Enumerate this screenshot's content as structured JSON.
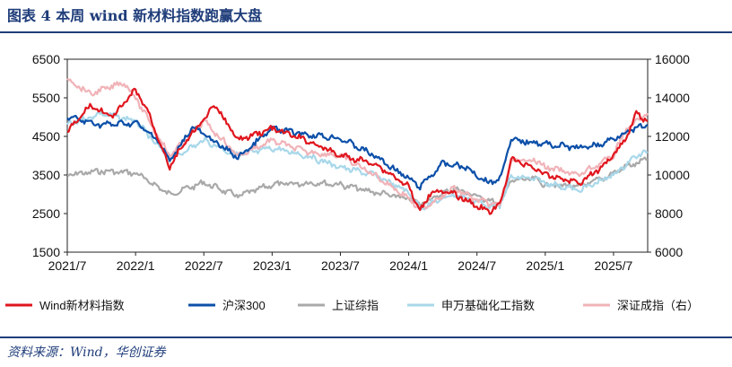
{
  "figure": {
    "title": "图表 4   本周 wind 新材料指数跑赢大盘",
    "source": "资料来源：Wind，华创证券"
  },
  "chart_data": {
    "type": "line",
    "x_start": "2021/7",
    "x_end": "2025/10",
    "xticks": [
      "2021/7",
      "2022/1",
      "2022/7",
      "2023/1",
      "2023/7",
      "2024/1",
      "2024/7",
      "2025/1",
      "2025/7"
    ],
    "y_left": {
      "range": [
        1500,
        6500
      ],
      "ticks": [
        "1500",
        "2500",
        "3500",
        "4500",
        "5500",
        "6500"
      ]
    },
    "y_right": {
      "range": [
        6000,
        16000
      ],
      "ticks": [
        "6000",
        "8000",
        "10000",
        "12000",
        "14000",
        "16000"
      ]
    },
    "series": [
      {
        "name": "Wind新材料指数",
        "axis": "left",
        "color": "#e0161e",
        "points": [
          [
            "2021/7",
            4600
          ],
          [
            "2021/9",
            5300
          ],
          [
            "2021/11",
            5000
          ],
          [
            "2022/1",
            5700
          ],
          [
            "2022/2",
            5200
          ],
          [
            "2022/4",
            3700
          ],
          [
            "2022/5",
            4200
          ],
          [
            "2022/8",
            5300
          ],
          [
            "2022/10",
            4400
          ],
          [
            "2023/1",
            4700
          ],
          [
            "2023/4",
            4400
          ],
          [
            "2023/7",
            4000
          ],
          [
            "2023/10",
            3800
          ],
          [
            "2024/1",
            3200
          ],
          [
            "2024/2",
            2550
          ],
          [
            "2024/3",
            3100
          ],
          [
            "2024/5",
            3000
          ],
          [
            "2024/7",
            2700
          ],
          [
            "2024/8",
            2550
          ],
          [
            "2024/9",
            2700
          ],
          [
            "2024/10",
            3900
          ],
          [
            "2024/12",
            3700
          ],
          [
            "2025/1",
            3500
          ],
          [
            "2025/4",
            3300
          ],
          [
            "2025/6",
            3700
          ],
          [
            "2025/8",
            4400
          ],
          [
            "2025/9",
            5100
          ],
          [
            "2025/10",
            4900
          ]
        ]
      },
      {
        "name": "沪深300",
        "axis": "right",
        "color": "#0b4fa8",
        "points": [
          [
            "2021/7",
            13000
          ],
          [
            "2021/10",
            12600
          ],
          [
            "2022/1",
            12700
          ],
          [
            "2022/3",
            11800
          ],
          [
            "2022/4",
            10700
          ],
          [
            "2022/6",
            12500
          ],
          [
            "2022/10",
            10900
          ],
          [
            "2023/1",
            12400
          ],
          [
            "2023/4",
            12100
          ],
          [
            "2023/7",
            11900
          ],
          [
            "2023/10",
            11000
          ],
          [
            "2024/1",
            9800
          ],
          [
            "2024/2",
            9400
          ],
          [
            "2024/4",
            10600
          ],
          [
            "2024/6",
            10400
          ],
          [
            "2024/8",
            9600
          ],
          [
            "2024/9",
            9800
          ],
          [
            "2024/10",
            11800
          ],
          [
            "2024/12",
            11700
          ],
          [
            "2025/1",
            11600
          ],
          [
            "2025/4",
            11400
          ],
          [
            "2025/6",
            11600
          ],
          [
            "2025/8",
            12200
          ],
          [
            "2025/10",
            12600
          ]
        ]
      },
      {
        "name": "上证综指",
        "axis": "left",
        "color": "#a9a9a9",
        "points": [
          [
            "2021/7",
            3500
          ],
          [
            "2021/10",
            3600
          ],
          [
            "2022/1",
            3550
          ],
          [
            "2022/4",
            3000
          ],
          [
            "2022/7",
            3300
          ],
          [
            "2022/10",
            2950
          ],
          [
            "2023/1",
            3250
          ],
          [
            "2023/5",
            3300
          ],
          [
            "2023/7",
            3250
          ],
          [
            "2023/10",
            3050
          ],
          [
            "2024/1",
            2880
          ],
          [
            "2024/2",
            2750
          ],
          [
            "2024/5",
            3150
          ],
          [
            "2024/7",
            2950
          ],
          [
            "2024/9",
            2750
          ],
          [
            "2024/10",
            3350
          ],
          [
            "2024/12",
            3400
          ],
          [
            "2025/1",
            3250
          ],
          [
            "2025/4",
            3200
          ],
          [
            "2025/6",
            3400
          ],
          [
            "2025/8",
            3700
          ],
          [
            "2025/10",
            3900
          ]
        ]
      },
      {
        "name": "申万基础化工指数",
        "axis": "left",
        "color": "#a8d8ea",
        "points": [
          [
            "2021/7",
            4800
          ],
          [
            "2021/10",
            5100
          ],
          [
            "2022/1",
            4900
          ],
          [
            "2022/4",
            3900
          ],
          [
            "2022/7",
            4400
          ],
          [
            "2022/10",
            4000
          ],
          [
            "2023/1",
            4200
          ],
          [
            "2023/4",
            4000
          ],
          [
            "2023/7",
            3700
          ],
          [
            "2023/10",
            3500
          ],
          [
            "2024/1",
            3050
          ],
          [
            "2024/2",
            2650
          ],
          [
            "2024/5",
            3000
          ],
          [
            "2024/8",
            2700
          ],
          [
            "2024/9",
            2700
          ],
          [
            "2024/10",
            3450
          ],
          [
            "2024/12",
            3400
          ],
          [
            "2025/1",
            3300
          ],
          [
            "2025/4",
            3100
          ],
          [
            "2025/7",
            3500
          ],
          [
            "2025/9",
            4000
          ],
          [
            "2025/10",
            4100
          ]
        ]
      },
      {
        "name": "深证成指（右）",
        "axis": "right",
        "color": "#f0b3b8",
        "points": [
          [
            "2021/7",
            15000
          ],
          [
            "2021/9",
            14200
          ],
          [
            "2021/12",
            14800
          ],
          [
            "2022/1",
            14000
          ],
          [
            "2022/4",
            11000
          ],
          [
            "2022/7",
            12800
          ],
          [
            "2022/10",
            11000
          ],
          [
            "2023/1",
            11800
          ],
          [
            "2023/4",
            11200
          ],
          [
            "2023/7",
            11000
          ],
          [
            "2023/10",
            10000
          ],
          [
            "2024/1",
            8800
          ],
          [
            "2024/2",
            8200
          ],
          [
            "2024/5",
            9300
          ],
          [
            "2024/7",
            8700
          ],
          [
            "2024/9",
            8400
          ],
          [
            "2024/10",
            10700
          ],
          [
            "2024/12",
            10800
          ],
          [
            "2025/1",
            10400
          ],
          [
            "2025/4",
            10000
          ],
          [
            "2025/7",
            11000
          ],
          [
            "2025/8",
            12300
          ],
          [
            "2025/10",
            13200
          ]
        ]
      }
    ]
  }
}
